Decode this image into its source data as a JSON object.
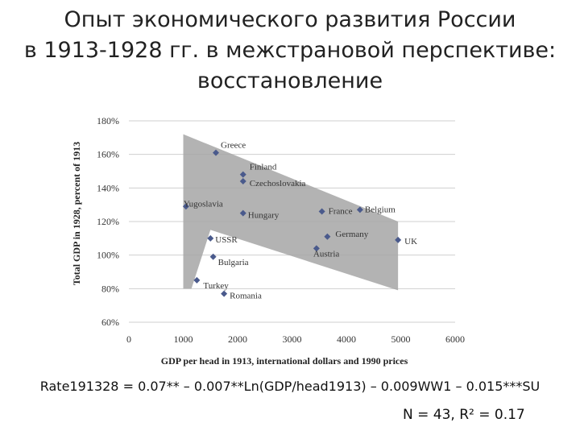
{
  "slide": {
    "title_lines": [
      "Опыт экономического развития России",
      "в 1913-1928 гг. в межстрановой перспективе:",
      "восстановление"
    ],
    "formula": "Rate191328 = 0.07** – 0.007**Ln(GDP/head1913) – 0.009WW1 – 0.015***SU",
    "stats": "N = 43, R² = 0.17"
  },
  "chart_data": {
    "type": "scatter",
    "xlabel": "GDP per head in 1913, international dollars and 1990 prices",
    "ylabel": "Total GDP in 1928, percent of 1913",
    "xlim": [
      0,
      6000
    ],
    "ylim": [
      60,
      180
    ],
    "x_ticks": [
      0,
      1000,
      2000,
      3000,
      4000,
      5000,
      6000
    ],
    "y_ticks": [
      60,
      80,
      100,
      120,
      140,
      160,
      180
    ],
    "y_tick_labels": [
      "60%",
      "80%",
      "100%",
      "120%",
      "140%",
      "160%",
      "180%"
    ],
    "grid": true,
    "marker_color": "#4a5a8c",
    "band_color": "#a6a6a6",
    "band_polygon": [
      [
        1000,
        172
      ],
      [
        4950,
        120
      ],
      [
        4950,
        79
      ],
      [
        1500,
        115
      ],
      [
        1150,
        80
      ],
      [
        1000,
        80
      ]
    ],
    "points": [
      {
        "label": "Greece",
        "x": 1600,
        "y": 161
      },
      {
        "label": "Finland",
        "x": 2100,
        "y": 148
      },
      {
        "label": "Czechoslovakia",
        "x": 2100,
        "y": 144
      },
      {
        "label": "Yugoslavia",
        "x": 1050,
        "y": 129
      },
      {
        "label": "Hungary",
        "x": 2100,
        "y": 125
      },
      {
        "label": "France",
        "x": 3550,
        "y": 126
      },
      {
        "label": "Belgium",
        "x": 4250,
        "y": 127
      },
      {
        "label": "USSR",
        "x": 1500,
        "y": 110
      },
      {
        "label": "Germany",
        "x": 3650,
        "y": 111
      },
      {
        "label": "Austria",
        "x": 3450,
        "y": 104
      },
      {
        "label": "UK",
        "x": 4950,
        "y": 109
      },
      {
        "label": "Bulgaria",
        "x": 1550,
        "y": 99
      },
      {
        "label": "Turkey",
        "x": 1250,
        "y": 85
      },
      {
        "label": "Romania",
        "x": 1750,
        "y": 77
      }
    ]
  }
}
